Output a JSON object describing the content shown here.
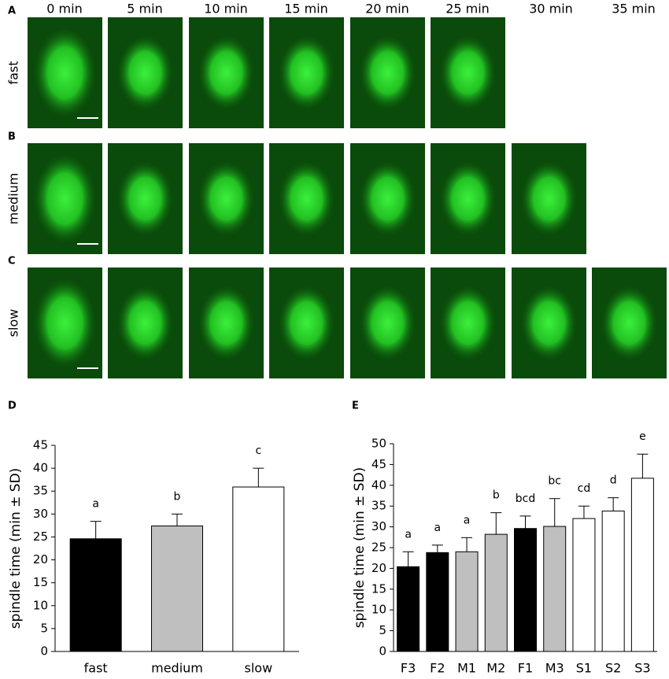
{
  "figure": {
    "panel_labels": [
      "A",
      "B",
      "C"
    ],
    "time_labels": [
      "0 min",
      "5 min",
      "10 min",
      "15 min",
      "20 min",
      "25 min",
      "30 min",
      "35 min"
    ],
    "row_labels": [
      "fast",
      "medium",
      "slow"
    ]
  },
  "chart_data": [
    {
      "type": "bar",
      "panel_label": "D",
      "y_label": "spindle time (min ± SD)",
      "categories": [
        "fast",
        "medium",
        "slow"
      ],
      "values": [
        24.6,
        27.4,
        35.9
      ],
      "errors": [
        3.8,
        2.6,
        4.1
      ],
      "annotations": [
        "a",
        "b",
        "c"
      ],
      "colors": [
        "#000000",
        "#bfbfbf",
        "#ffffff"
      ],
      "ylim": [
        0,
        45
      ],
      "yticks": [
        0,
        5,
        10,
        15,
        20,
        25,
        30,
        35,
        40,
        45
      ]
    },
    {
      "type": "bar",
      "panel_label": "E",
      "y_label": "spindle time (min ± SD)",
      "categories": [
        "F3",
        "F2",
        "M1",
        "M2",
        "F1",
        "M3",
        "S1",
        "S2",
        "S3"
      ],
      "values": [
        20.4,
        23.8,
        24,
        28.2,
        29.6,
        30.1,
        32,
        33.8,
        41.7
      ],
      "errors": [
        3.6,
        1.8,
        3.4,
        5.2,
        3,
        6.7,
        3,
        3.2,
        5.8
      ],
      "annotations": [
        "a",
        "a",
        "a",
        "b",
        "bcd",
        "bc",
        "cd",
        "d",
        "e"
      ],
      "colors": [
        "#000000",
        "#000000",
        "#bfbfbf",
        "#bfbfbf",
        "#000000",
        "#bfbfbf",
        "#ffffff",
        "#ffffff",
        "#ffffff"
      ],
      "ylim": [
        0,
        50
      ],
      "yticks": [
        0,
        5,
        10,
        15,
        20,
        25,
        30,
        35,
        40,
        45,
        50
      ]
    }
  ]
}
